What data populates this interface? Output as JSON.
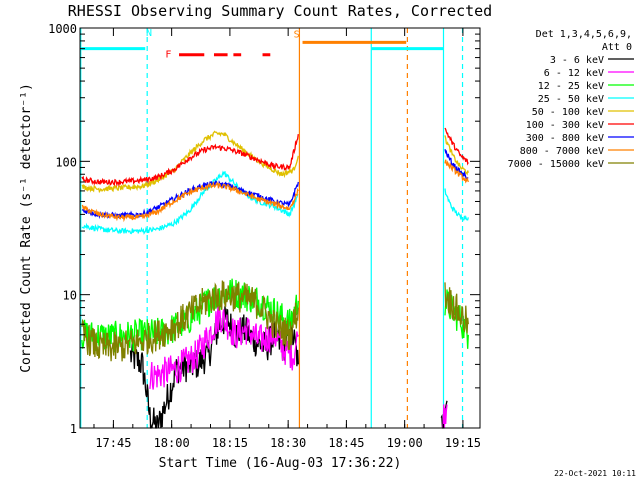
{
  "chart_data": {
    "type": "line",
    "title": "RHESSI Observing Summary Count Rates, Corrected",
    "xlabel": "Start Time (16-Aug-03 17:36:22)",
    "ylabel": "Corrected Count Rate (s⁻¹ detector⁻¹)",
    "yscale": "log",
    "ylim": [
      1,
      1000
    ],
    "xlim_minutes_after_1736": [
      0,
      103
    ],
    "x_ticks": [
      {
        "label": "17:45",
        "min": 8.6
      },
      {
        "label": "18:00",
        "min": 23.6
      },
      {
        "label": "18:15",
        "min": 38.6
      },
      {
        "label": "18:30",
        "min": 53.6
      },
      {
        "label": "18:45",
        "min": 68.6
      },
      {
        "label": "19:00",
        "min": 83.6
      },
      {
        "label": "19:15",
        "min": 98.6
      }
    ],
    "y_ticks": [
      {
        "label": "1",
        "value": 1
      },
      {
        "label": "10",
        "value": 10
      },
      {
        "label": "100",
        "value": 100
      },
      {
        "label": "1000",
        "value": 1000
      }
    ],
    "legend_header": [
      "Det 1,3,4,5,6,9,",
      "Att 0"
    ],
    "legend_position": "top-right, outside plot",
    "timestamp": "22-Oct-2021 10:11",
    "markers": [
      {
        "text": "N",
        "color": "#00ffff",
        "x_min": 17.0
      },
      {
        "text": "F",
        "color": "#ff0000",
        "x_min": 22.0
      },
      {
        "text": "S",
        "color": "#ff8000",
        "x_min": 55.0
      }
    ],
    "intervals": [
      {
        "name": "night",
        "color": "#00ffff",
        "y": 700,
        "segments": [
          [
            0.3,
            16.8
          ],
          [
            75.1,
            93.5
          ]
        ]
      },
      {
        "name": "flare",
        "color": "#ff0000",
        "y": 630,
        "segments": [
          [
            25.5,
            32.0
          ],
          [
            34.5,
            38.0
          ],
          [
            39.5,
            41.5
          ],
          [
            47.0,
            49.0
          ]
        ]
      },
      {
        "name": "saa",
        "color": "#ff8000",
        "y": 780,
        "segments": [
          [
            57.3,
            84.0
          ]
        ]
      }
    ],
    "vertical_lines": [
      {
        "color": "#00ffff",
        "x_min": 0.2,
        "style": "solid"
      },
      {
        "color": "#00ffff",
        "x_min": 17.3,
        "style": "dashed"
      },
      {
        "color": "#ff8000",
        "x_min": 56.5,
        "style": "solid"
      },
      {
        "color": "#00ffff",
        "x_min": 75.0,
        "style": "solid"
      },
      {
        "color": "#ff8000",
        "x_min": 84.3,
        "style": "dashed"
      },
      {
        "color": "#00ffff",
        "x_min": 93.6,
        "style": "solid"
      },
      {
        "color": "#00ffff",
        "x_min": 98.5,
        "style": "dashed"
      }
    ],
    "series": [
      {
        "name": "3 - 6 keV",
        "color": "#000000",
        "segments": [
          [
            [
              13,
              3.5
            ],
            [
              16,
              3.0
            ],
            [
              17,
              2.0
            ],
            [
              18,
              1.2
            ],
            [
              20,
              1.0
            ],
            [
              25,
              2.8
            ],
            [
              30,
              3.0
            ],
            [
              33,
              3.5
            ],
            [
              36,
              6.0
            ],
            [
              38,
              6.5
            ],
            [
              40,
              5.0
            ],
            [
              42,
              5.5
            ],
            [
              45,
              4.5
            ],
            [
              48,
              4.0
            ],
            [
              50,
              5.0
            ],
            [
              52,
              4.0
            ],
            [
              55,
              4.8
            ],
            [
              56.2,
              3.0
            ]
          ],
          [
            [
              93.0,
              1.0
            ],
            [
              94.5,
              1.6
            ]
          ]
        ]
      },
      {
        "name": "6 - 12 keV",
        "color": "#ff00ff",
        "segments": [
          [
            [
              18,
              2.5
            ],
            [
              20,
              2.5
            ],
            [
              25,
              2.8
            ],
            [
              30,
              3.5
            ],
            [
              34,
              5.5
            ],
            [
              36,
              7.0
            ],
            [
              38,
              6.0
            ],
            [
              40,
              5.0
            ],
            [
              43,
              5.5
            ],
            [
              46,
              4.5
            ],
            [
              50,
              5.0
            ],
            [
              52,
              4.0
            ],
            [
              55,
              3.5
            ],
            [
              56.2,
              5.0
            ]
          ],
          [
            [
              93.5,
              1.2
            ],
            [
              94.5,
              1.5
            ]
          ]
        ]
      },
      {
        "name": "12 - 25 keV",
        "color": "#00ff00",
        "segments": [
          [
            [
              0.5,
              5.0
            ],
            [
              8,
              4.8
            ],
            [
              16,
              5.0
            ],
            [
              22,
              5.2
            ],
            [
              28,
              6.5
            ],
            [
              34,
              9.5
            ],
            [
              38,
              10.5
            ],
            [
              42,
              10.0
            ],
            [
              46,
              9.0
            ],
            [
              50,
              7.5
            ],
            [
              54,
              6.0
            ],
            [
              56.2,
              9.0
            ]
          ],
          [
            [
              94.0,
              9.0
            ],
            [
              96,
              7.5
            ],
            [
              98,
              6.5
            ],
            [
              100,
              5.0
            ]
          ]
        ]
      },
      {
        "name": "25 - 50 keV",
        "color": "#00ffff",
        "segments": [
          [
            [
              0.5,
              33
            ],
            [
              5,
              31
            ],
            [
              10,
              30
            ],
            [
              16,
              30
            ],
            [
              20,
              31
            ],
            [
              24,
              34
            ],
            [
              28,
              42
            ],
            [
              32,
              60
            ],
            [
              35,
              72
            ],
            [
              37,
              82
            ],
            [
              39,
              72
            ],
            [
              42,
              58
            ],
            [
              46,
              50
            ],
            [
              50,
              46
            ],
            [
              54,
              40
            ],
            [
              56.2,
              56
            ]
          ],
          [
            [
              94.0,
              60
            ],
            [
              95,
              50
            ],
            [
              96,
              44
            ],
            [
              98,
              38
            ],
            [
              100,
              38
            ]
          ]
        ]
      },
      {
        "name": "50 - 100 keV",
        "color": "#e0c000",
        "segments": [
          [
            [
              0.5,
              64
            ],
            [
              5,
              62
            ],
            [
              10,
              63
            ],
            [
              16,
              65
            ],
            [
              20,
              72
            ],
            [
              24,
              85
            ],
            [
              28,
              112
            ],
            [
              32,
              145
            ],
            [
              35,
              162
            ],
            [
              37,
              160
            ],
            [
              40,
              135
            ],
            [
              44,
              110
            ],
            [
              48,
              92
            ],
            [
              52,
              80
            ],
            [
              55,
              86
            ],
            [
              56.2,
              110
            ]
          ],
          [
            [
              94.0,
              150
            ],
            [
              96,
              110
            ],
            [
              98,
              90
            ],
            [
              100,
              82
            ]
          ]
        ]
      },
      {
        "name": "100 - 300 keV",
        "color": "#ff0000",
        "segments": [
          [
            [
              0.5,
              73
            ],
            [
              5,
              70
            ],
            [
              10,
              70
            ],
            [
              16,
              72
            ],
            [
              20,
              76
            ],
            [
              24,
              86
            ],
            [
              28,
              105
            ],
            [
              32,
              122
            ],
            [
              35,
              128
            ],
            [
              38,
              124
            ],
            [
              42,
              114
            ],
            [
              46,
              102
            ],
            [
              50,
              92
            ],
            [
              54,
              90
            ],
            [
              56.2,
              160
            ]
          ],
          [
            [
              94.0,
              175
            ],
            [
              96,
              135
            ],
            [
              98,
              110
            ],
            [
              100,
              98
            ]
          ]
        ]
      },
      {
        "name": "300 - 800 keV",
        "color": "#0000ff",
        "segments": [
          [
            [
              0.5,
              43
            ],
            [
              5,
              40
            ],
            [
              10,
              39
            ],
            [
              16,
              40
            ],
            [
              20,
              45
            ],
            [
              24,
              52
            ],
            [
              28,
              60
            ],
            [
              32,
              66
            ],
            [
              35,
              68
            ],
            [
              38,
              66
            ],
            [
              42,
              60
            ],
            [
              46,
              55
            ],
            [
              50,
              50
            ],
            [
              54,
              47
            ],
            [
              56.2,
              70
            ]
          ],
          [
            [
              94.0,
              120
            ],
            [
              96,
              95
            ],
            [
              98,
              82
            ],
            [
              100,
              75
            ]
          ]
        ]
      },
      {
        "name": "800 - 7000 keV",
        "color": "#ff8000",
        "segments": [
          [
            [
              0.5,
              45
            ],
            [
              5,
              40
            ],
            [
              10,
              38
            ],
            [
              16,
              38
            ],
            [
              20,
              42
            ],
            [
              24,
              50
            ],
            [
              28,
              58
            ],
            [
              32,
              64
            ],
            [
              35,
              66
            ],
            [
              38,
              64
            ],
            [
              42,
              58
            ],
            [
              46,
              52
            ],
            [
              50,
              48
            ],
            [
              54,
              44
            ],
            [
              56.2,
              60
            ]
          ],
          [
            [
              94.0,
              100
            ],
            [
              96,
              88
            ],
            [
              98,
              78
            ],
            [
              100,
              70
            ]
          ]
        ]
      },
      {
        "name": "7000 - 15000 keV",
        "color": "#808000",
        "segments": [
          [
            [
              0.5,
              5.0
            ],
            [
              5,
              4.0
            ],
            [
              10,
              4.0
            ],
            [
              16,
              4.5
            ],
            [
              20,
              5.0
            ],
            [
              25,
              6.0
            ],
            [
              30,
              8.0
            ],
            [
              34,
              9.5
            ],
            [
              38,
              10.0
            ],
            [
              42,
              9.5
            ],
            [
              46,
              8.5
            ],
            [
              50,
              6.0
            ],
            [
              54,
              5.0
            ],
            [
              56.2,
              8.0
            ]
          ],
          [
            [
              94.0,
              10
            ],
            [
              96,
              8.5
            ],
            [
              98,
              7.0
            ],
            [
              100,
              6.0
            ]
          ]
        ]
      }
    ]
  }
}
